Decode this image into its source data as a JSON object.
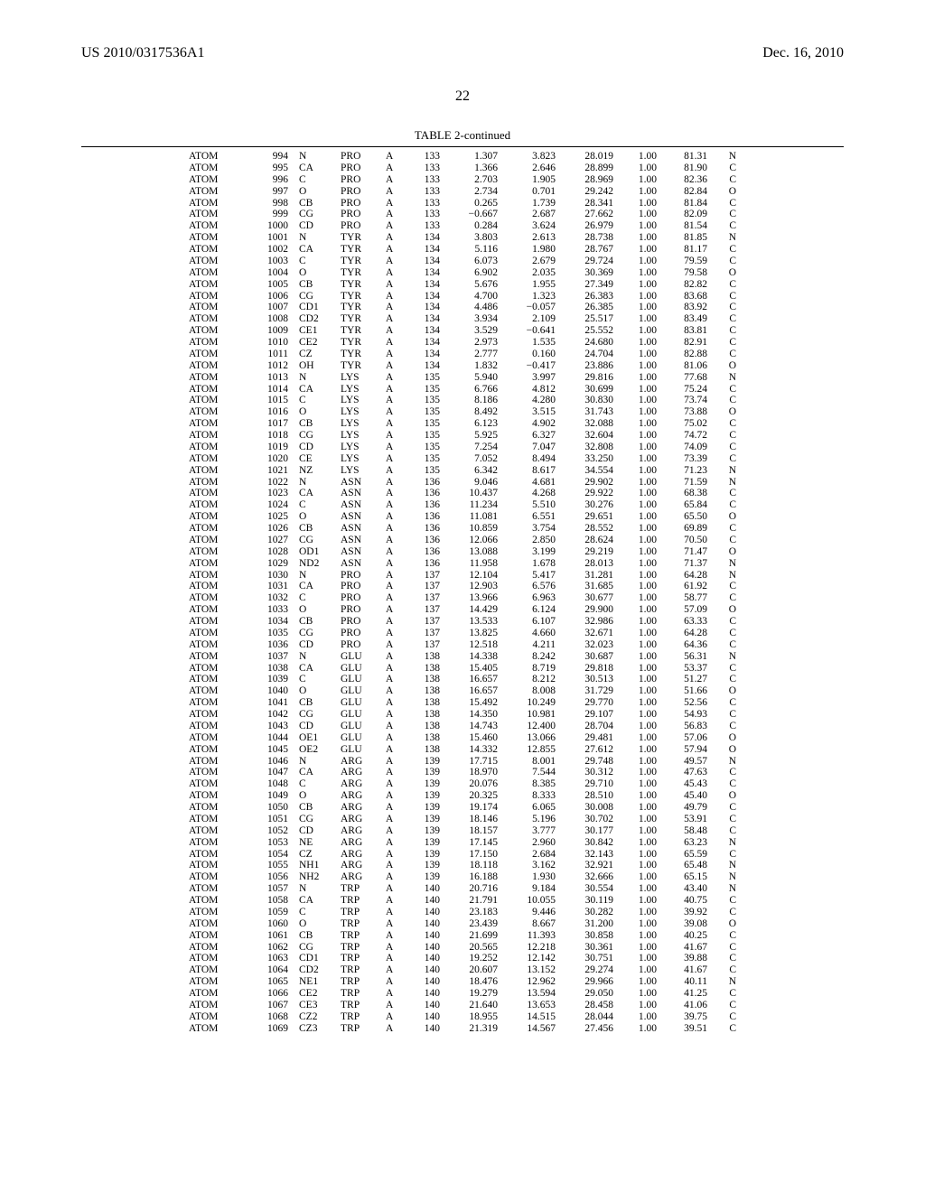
{
  "header": {
    "left": "US 2010/0317536A1",
    "right": "Dec. 16, 2010"
  },
  "page_number": "22",
  "table": {
    "caption": "TABLE 2-continued",
    "rows": [
      [
        "ATOM",
        "994",
        "N",
        "PRO",
        "A",
        "133",
        "1.307",
        "3.823",
        "28.019",
        "1.00",
        "81.31",
        "N"
      ],
      [
        "ATOM",
        "995",
        "CA",
        "PRO",
        "A",
        "133",
        "1.366",
        "2.646",
        "28.899",
        "1.00",
        "81.90",
        "C"
      ],
      [
        "ATOM",
        "996",
        "C",
        "PRO",
        "A",
        "133",
        "2.703",
        "1.905",
        "28.969",
        "1.00",
        "82.36",
        "C"
      ],
      [
        "ATOM",
        "997",
        "O",
        "PRO",
        "A",
        "133",
        "2.734",
        "0.701",
        "29.242",
        "1.00",
        "82.84",
        "O"
      ],
      [
        "ATOM",
        "998",
        "CB",
        "PRO",
        "A",
        "133",
        "0.265",
        "1.739",
        "28.341",
        "1.00",
        "81.84",
        "C"
      ],
      [
        "ATOM",
        "999",
        "CG",
        "PRO",
        "A",
        "133",
        "−0.667",
        "2.687",
        "27.662",
        "1.00",
        "82.09",
        "C"
      ],
      [
        "ATOM",
        "1000",
        "CD",
        "PRO",
        "A",
        "133",
        "0.284",
        "3.624",
        "26.979",
        "1.00",
        "81.54",
        "C"
      ],
      [
        "ATOM",
        "1001",
        "N",
        "TYR",
        "A",
        "134",
        "3.803",
        "2.613",
        "28.738",
        "1.00",
        "81.85",
        "N"
      ],
      [
        "ATOM",
        "1002",
        "CA",
        "TYR",
        "A",
        "134",
        "5.116",
        "1.980",
        "28.767",
        "1.00",
        "81.17",
        "C"
      ],
      [
        "ATOM",
        "1003",
        "C",
        "TYR",
        "A",
        "134",
        "6.073",
        "2.679",
        "29.724",
        "1.00",
        "79.59",
        "C"
      ],
      [
        "ATOM",
        "1004",
        "O",
        "TYR",
        "A",
        "134",
        "6.902",
        "2.035",
        "30.369",
        "1.00",
        "79.58",
        "O"
      ],
      [
        "ATOM",
        "1005",
        "CB",
        "TYR",
        "A",
        "134",
        "5.676",
        "1.955",
        "27.349",
        "1.00",
        "82.82",
        "C"
      ],
      [
        "ATOM",
        "1006",
        "CG",
        "TYR",
        "A",
        "134",
        "4.700",
        "1.323",
        "26.383",
        "1.00",
        "83.68",
        "C"
      ],
      [
        "ATOM",
        "1007",
        "CD1",
        "TYR",
        "A",
        "134",
        "4.486",
        "−0.057",
        "26.385",
        "1.00",
        "83.92",
        "C"
      ],
      [
        "ATOM",
        "1008",
        "CD2",
        "TYR",
        "A",
        "134",
        "3.934",
        "2.109",
        "25.517",
        "1.00",
        "83.49",
        "C"
      ],
      [
        "ATOM",
        "1009",
        "CE1",
        "TYR",
        "A",
        "134",
        "3.529",
        "−0.641",
        "25.552",
        "1.00",
        "83.81",
        "C"
      ],
      [
        "ATOM",
        "1010",
        "CE2",
        "TYR",
        "A",
        "134",
        "2.973",
        "1.535",
        "24.680",
        "1.00",
        "82.91",
        "C"
      ],
      [
        "ATOM",
        "1011",
        "CZ",
        "TYR",
        "A",
        "134",
        "2.777",
        "0.160",
        "24.704",
        "1.00",
        "82.88",
        "C"
      ],
      [
        "ATOM",
        "1012",
        "OH",
        "TYR",
        "A",
        "134",
        "1.832",
        "−0.417",
        "23.886",
        "1.00",
        "81.06",
        "O"
      ],
      [
        "ATOM",
        "1013",
        "N",
        "LYS",
        "A",
        "135",
        "5.940",
        "3.997",
        "29.816",
        "1.00",
        "77.68",
        "N"
      ],
      [
        "ATOM",
        "1014",
        "CA",
        "LYS",
        "A",
        "135",
        "6.766",
        "4.812",
        "30.699",
        "1.00",
        "75.24",
        "C"
      ],
      [
        "ATOM",
        "1015",
        "C",
        "LYS",
        "A",
        "135",
        "8.186",
        "4.280",
        "30.830",
        "1.00",
        "73.74",
        "C"
      ],
      [
        "ATOM",
        "1016",
        "O",
        "LYS",
        "A",
        "135",
        "8.492",
        "3.515",
        "31.743",
        "1.00",
        "73.88",
        "O"
      ],
      [
        "ATOM",
        "1017",
        "CB",
        "LYS",
        "A",
        "135",
        "6.123",
        "4.902",
        "32.088",
        "1.00",
        "75.02",
        "C"
      ],
      [
        "ATOM",
        "1018",
        "CG",
        "LYS",
        "A",
        "135",
        "5.925",
        "6.327",
        "32.604",
        "1.00",
        "74.72",
        "C"
      ],
      [
        "ATOM",
        "1019",
        "CD",
        "LYS",
        "A",
        "135",
        "7.254",
        "7.047",
        "32.808",
        "1.00",
        "74.09",
        "C"
      ],
      [
        "ATOM",
        "1020",
        "CE",
        "LYS",
        "A",
        "135",
        "7.052",
        "8.494",
        "33.250",
        "1.00",
        "73.39",
        "C"
      ],
      [
        "ATOM",
        "1021",
        "NZ",
        "LYS",
        "A",
        "135",
        "6.342",
        "8.617",
        "34.554",
        "1.00",
        "71.23",
        "N"
      ],
      [
        "ATOM",
        "1022",
        "N",
        "ASN",
        "A",
        "136",
        "9.046",
        "4.681",
        "29.902",
        "1.00",
        "71.59",
        "N"
      ],
      [
        "ATOM",
        "1023",
        "CA",
        "ASN",
        "A",
        "136",
        "10.437",
        "4.268",
        "29.922",
        "1.00",
        "68.38",
        "C"
      ],
      [
        "ATOM",
        "1024",
        "C",
        "ASN",
        "A",
        "136",
        "11.234",
        "5.510",
        "30.276",
        "1.00",
        "65.84",
        "C"
      ],
      [
        "ATOM",
        "1025",
        "O",
        "ASN",
        "A",
        "136",
        "11.081",
        "6.551",
        "29.651",
        "1.00",
        "65.50",
        "O"
      ],
      [
        "ATOM",
        "1026",
        "CB",
        "ASN",
        "A",
        "136",
        "10.859",
        "3.754",
        "28.552",
        "1.00",
        "69.89",
        "C"
      ],
      [
        "ATOM",
        "1027",
        "CG",
        "ASN",
        "A",
        "136",
        "12.066",
        "2.850",
        "28.624",
        "1.00",
        "70.50",
        "C"
      ],
      [
        "ATOM",
        "1028",
        "OD1",
        "ASN",
        "A",
        "136",
        "13.088",
        "3.199",
        "29.219",
        "1.00",
        "71.47",
        "O"
      ],
      [
        "ATOM",
        "1029",
        "ND2",
        "ASN",
        "A",
        "136",
        "11.958",
        "1.678",
        "28.013",
        "1.00",
        "71.37",
        "N"
      ],
      [
        "ATOM",
        "1030",
        "N",
        "PRO",
        "A",
        "137",
        "12.104",
        "5.417",
        "31.281",
        "1.00",
        "64.28",
        "N"
      ],
      [
        "ATOM",
        "1031",
        "CA",
        "PRO",
        "A",
        "137",
        "12.903",
        "6.576",
        "31.685",
        "1.00",
        "61.92",
        "C"
      ],
      [
        "ATOM",
        "1032",
        "C",
        "PRO",
        "A",
        "137",
        "13.966",
        "6.963",
        "30.677",
        "1.00",
        "58.77",
        "C"
      ],
      [
        "ATOM",
        "1033",
        "O",
        "PRO",
        "A",
        "137",
        "14.429",
        "6.124",
        "29.900",
        "1.00",
        "57.09",
        "O"
      ],
      [
        "ATOM",
        "1034",
        "CB",
        "PRO",
        "A",
        "137",
        "13.533",
        "6.107",
        "32.986",
        "1.00",
        "63.33",
        "C"
      ],
      [
        "ATOM",
        "1035",
        "CG",
        "PRO",
        "A",
        "137",
        "13.825",
        "4.660",
        "32.671",
        "1.00",
        "64.28",
        "C"
      ],
      [
        "ATOM",
        "1036",
        "CD",
        "PRO",
        "A",
        "137",
        "12.518",
        "4.211",
        "32.023",
        "1.00",
        "64.36",
        "C"
      ],
      [
        "ATOM",
        "1037",
        "N",
        "GLU",
        "A",
        "138",
        "14.338",
        "8.242",
        "30.687",
        "1.00",
        "56.31",
        "N"
      ],
      [
        "ATOM",
        "1038",
        "CA",
        "GLU",
        "A",
        "138",
        "15.405",
        "8.719",
        "29.818",
        "1.00",
        "53.37",
        "C"
      ],
      [
        "ATOM",
        "1039",
        "C",
        "GLU",
        "A",
        "138",
        "16.657",
        "8.212",
        "30.513",
        "1.00",
        "51.27",
        "C"
      ],
      [
        "ATOM",
        "1040",
        "O",
        "GLU",
        "A",
        "138",
        "16.657",
        "8.008",
        "31.729",
        "1.00",
        "51.66",
        "O"
      ],
      [
        "ATOM",
        "1041",
        "CB",
        "GLU",
        "A",
        "138",
        "15.492",
        "10.249",
        "29.770",
        "1.00",
        "52.56",
        "C"
      ],
      [
        "ATOM",
        "1042",
        "CG",
        "GLU",
        "A",
        "138",
        "14.350",
        "10.981",
        "29.107",
        "1.00",
        "54.93",
        "C"
      ],
      [
        "ATOM",
        "1043",
        "CD",
        "GLU",
        "A",
        "138",
        "14.743",
        "12.400",
        "28.704",
        "1.00",
        "56.83",
        "C"
      ],
      [
        "ATOM",
        "1044",
        "OE1",
        "GLU",
        "A",
        "138",
        "15.460",
        "13.066",
        "29.481",
        "1.00",
        "57.06",
        "O"
      ],
      [
        "ATOM",
        "1045",
        "OE2",
        "GLU",
        "A",
        "138",
        "14.332",
        "12.855",
        "27.612",
        "1.00",
        "57.94",
        "O"
      ],
      [
        "ATOM",
        "1046",
        "N",
        "ARG",
        "A",
        "139",
        "17.715",
        "8.001",
        "29.748",
        "1.00",
        "49.57",
        "N"
      ],
      [
        "ATOM",
        "1047",
        "CA",
        "ARG",
        "A",
        "139",
        "18.970",
        "7.544",
        "30.312",
        "1.00",
        "47.63",
        "C"
      ],
      [
        "ATOM",
        "1048",
        "C",
        "ARG",
        "A",
        "139",
        "20.076",
        "8.385",
        "29.710",
        "1.00",
        "45.43",
        "C"
      ],
      [
        "ATOM",
        "1049",
        "O",
        "ARG",
        "A",
        "139",
        "20.325",
        "8.333",
        "28.510",
        "1.00",
        "45.40",
        "O"
      ],
      [
        "ATOM",
        "1050",
        "CB",
        "ARG",
        "A",
        "139",
        "19.174",
        "6.065",
        "30.008",
        "1.00",
        "49.79",
        "C"
      ],
      [
        "ATOM",
        "1051",
        "CG",
        "ARG",
        "A",
        "139",
        "18.146",
        "5.196",
        "30.702",
        "1.00",
        "53.91",
        "C"
      ],
      [
        "ATOM",
        "1052",
        "CD",
        "ARG",
        "A",
        "139",
        "18.157",
        "3.777",
        "30.177",
        "1.00",
        "58.48",
        "C"
      ],
      [
        "ATOM",
        "1053",
        "NE",
        "ARG",
        "A",
        "139",
        "17.145",
        "2.960",
        "30.842",
        "1.00",
        "63.23",
        "N"
      ],
      [
        "ATOM",
        "1054",
        "CZ",
        "ARG",
        "A",
        "139",
        "17.150",
        "2.684",
        "32.143",
        "1.00",
        "65.59",
        "C"
      ],
      [
        "ATOM",
        "1055",
        "NH1",
        "ARG",
        "A",
        "139",
        "18.118",
        "3.162",
        "32.921",
        "1.00",
        "65.48",
        "N"
      ],
      [
        "ATOM",
        "1056",
        "NH2",
        "ARG",
        "A",
        "139",
        "16.188",
        "1.930",
        "32.666",
        "1.00",
        "65.15",
        "N"
      ],
      [
        "ATOM",
        "1057",
        "N",
        "TRP",
        "A",
        "140",
        "20.716",
        "9.184",
        "30.554",
        "1.00",
        "43.40",
        "N"
      ],
      [
        "ATOM",
        "1058",
        "CA",
        "TRP",
        "A",
        "140",
        "21.791",
        "10.055",
        "30.119",
        "1.00",
        "40.75",
        "C"
      ],
      [
        "ATOM",
        "1059",
        "C",
        "TRP",
        "A",
        "140",
        "23.183",
        "9.446",
        "30.282",
        "1.00",
        "39.92",
        "C"
      ],
      [
        "ATOM",
        "1060",
        "O",
        "TRP",
        "A",
        "140",
        "23.439",
        "8.667",
        "31.200",
        "1.00",
        "39.08",
        "O"
      ],
      [
        "ATOM",
        "1061",
        "CB",
        "TRP",
        "A",
        "140",
        "21.699",
        "11.393",
        "30.858",
        "1.00",
        "40.25",
        "C"
      ],
      [
        "ATOM",
        "1062",
        "CG",
        "TRP",
        "A",
        "140",
        "20.565",
        "12.218",
        "30.361",
        "1.00",
        "41.67",
        "C"
      ],
      [
        "ATOM",
        "1063",
        "CD1",
        "TRP",
        "A",
        "140",
        "19.252",
        "12.142",
        "30.751",
        "1.00",
        "39.88",
        "C"
      ],
      [
        "ATOM",
        "1064",
        "CD2",
        "TRP",
        "A",
        "140",
        "20.607",
        "13.152",
        "29.274",
        "1.00",
        "41.67",
        "C"
      ],
      [
        "ATOM",
        "1065",
        "NE1",
        "TRP",
        "A",
        "140",
        "18.476",
        "12.962",
        "29.966",
        "1.00",
        "40.11",
        "N"
      ],
      [
        "ATOM",
        "1066",
        "CE2",
        "TRP",
        "A",
        "140",
        "19.279",
        "13.594",
        "29.050",
        "1.00",
        "41.25",
        "C"
      ],
      [
        "ATOM",
        "1067",
        "CE3",
        "TRP",
        "A",
        "140",
        "21.640",
        "13.653",
        "28.458",
        "1.00",
        "41.06",
        "C"
      ],
      [
        "ATOM",
        "1068",
        "CZ2",
        "TRP",
        "A",
        "140",
        "18.955",
        "14.515",
        "28.044",
        "1.00",
        "39.75",
        "C"
      ],
      [
        "ATOM",
        "1069",
        "CZ3",
        "TRP",
        "A",
        "140",
        "21.319",
        "14.567",
        "27.456",
        "1.00",
        "39.51",
        "C"
      ]
    ]
  }
}
